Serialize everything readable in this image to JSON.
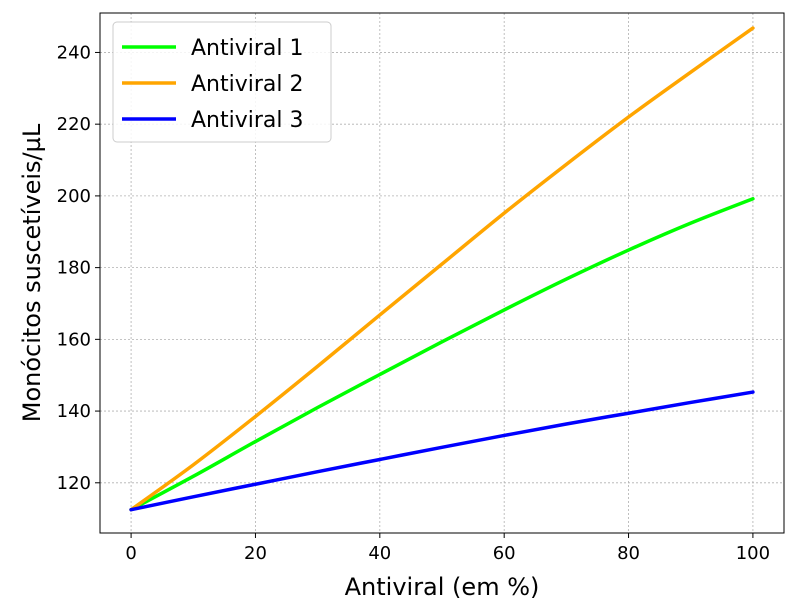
{
  "chart_data": {
    "type": "line",
    "xlabel": "Antiviral (em %)",
    "ylabel": "Monócitos suscetíveis/µL",
    "xlim": [
      -5,
      105
    ],
    "ylim": [
      106,
      251
    ],
    "xticks": [
      0,
      20,
      40,
      60,
      80,
      100
    ],
    "yticks": [
      120,
      140,
      160,
      180,
      200,
      220,
      240
    ],
    "grid": true,
    "legend_position": "top-left",
    "x": [
      0,
      10,
      20,
      30,
      40,
      50,
      60,
      70,
      80,
      90,
      100
    ],
    "series": [
      {
        "name": "Antiviral 1",
        "color": "#00ff00",
        "values": [
          112.5,
          121.8,
          131.5,
          141.0,
          150.2,
          159.3,
          168.2,
          176.8,
          184.9,
          192.4,
          199.2
        ]
      },
      {
        "name": "Antiviral 2",
        "color": "#ffa500",
        "values": [
          112.5,
          125.0,
          138.5,
          152.5,
          166.8,
          181.0,
          195.2,
          208.8,
          222.0,
          234.5,
          246.8
        ]
      },
      {
        "name": "Antiviral 3",
        "color": "#0000ff",
        "values": [
          112.5,
          116.1,
          119.6,
          123.1,
          126.5,
          129.9,
          133.2,
          136.4,
          139.4,
          142.4,
          145.3
        ]
      }
    ]
  }
}
